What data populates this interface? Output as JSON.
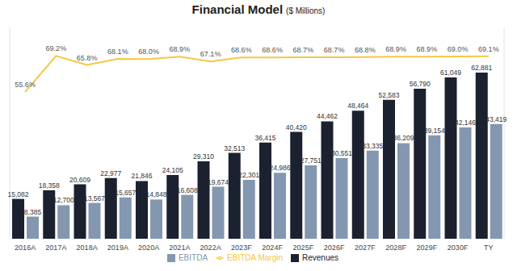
{
  "chart_data": {
    "type": "bar",
    "title": "Financial Model",
    "subtitle": "($ Millions)",
    "categories": [
      "2016A",
      "2017A",
      "2018A",
      "2019A",
      "2020A",
      "2021A",
      "2022A",
      "2023F",
      "2024F",
      "2025F",
      "2026F",
      "2027F",
      "2028F",
      "2029F",
      "2030F",
      "TY"
    ],
    "series": [
      {
        "name": "Revenues",
        "type": "bar",
        "color": "#1c2130",
        "values": [
          15082,
          18358,
          20609,
          22977,
          21846,
          24105,
          29310,
          32513,
          36415,
          40420,
          44462,
          48464,
          52583,
          56790,
          61049,
          62881
        ],
        "value_labels": [
          "15,082",
          "18,358",
          "20,609",
          "22,977",
          "21,846",
          "24,105",
          "29,310",
          "32,513",
          "36,415",
          "40,420",
          "44,462",
          "48,464",
          "52,583",
          "56,790",
          "61,049",
          "62,881"
        ]
      },
      {
        "name": "EBITDA",
        "type": "bar",
        "color": "#8497b0",
        "values": [
          8385,
          12700,
          13567,
          15657,
          14848,
          16608,
          19674,
          22301,
          24986,
          27751,
          30551,
          33335,
          36209,
          39154,
          42146,
          43419
        ],
        "value_labels": [
          "8,385",
          "12,700",
          "13,567",
          "15,657",
          "14,848",
          "16,608",
          "19,674",
          "22,301",
          "24,986",
          "27,751",
          "30,551",
          "33,335",
          "36,209",
          "39,154",
          "42,146",
          "43,419"
        ]
      },
      {
        "name": "EBITDA Margin",
        "type": "line",
        "axis": "y2",
        "color": "#f5c744",
        "values": [
          55.6,
          69.2,
          65.8,
          68.1,
          68.0,
          68.9,
          67.1,
          68.6,
          68.6,
          68.7,
          68.7,
          68.8,
          68.9,
          68.9,
          69.0,
          69.1
        ],
        "value_labels": [
          "55.6%",
          "69.2%",
          "65.8%",
          "68.1%",
          "68.0%",
          "68.9%",
          "67.1%",
          "68.6%",
          "68.6%",
          "68.7%",
          "68.7%",
          "68.8%",
          "68.9%",
          "68.9%",
          "69.0%",
          "69.1%"
        ]
      }
    ],
    "ylim": [
      0,
      80000
    ],
    "y2lim": [
      0,
      80
    ],
    "data_labels": true,
    "tick_labels": "x",
    "legend": "bottom",
    "grid": false
  }
}
